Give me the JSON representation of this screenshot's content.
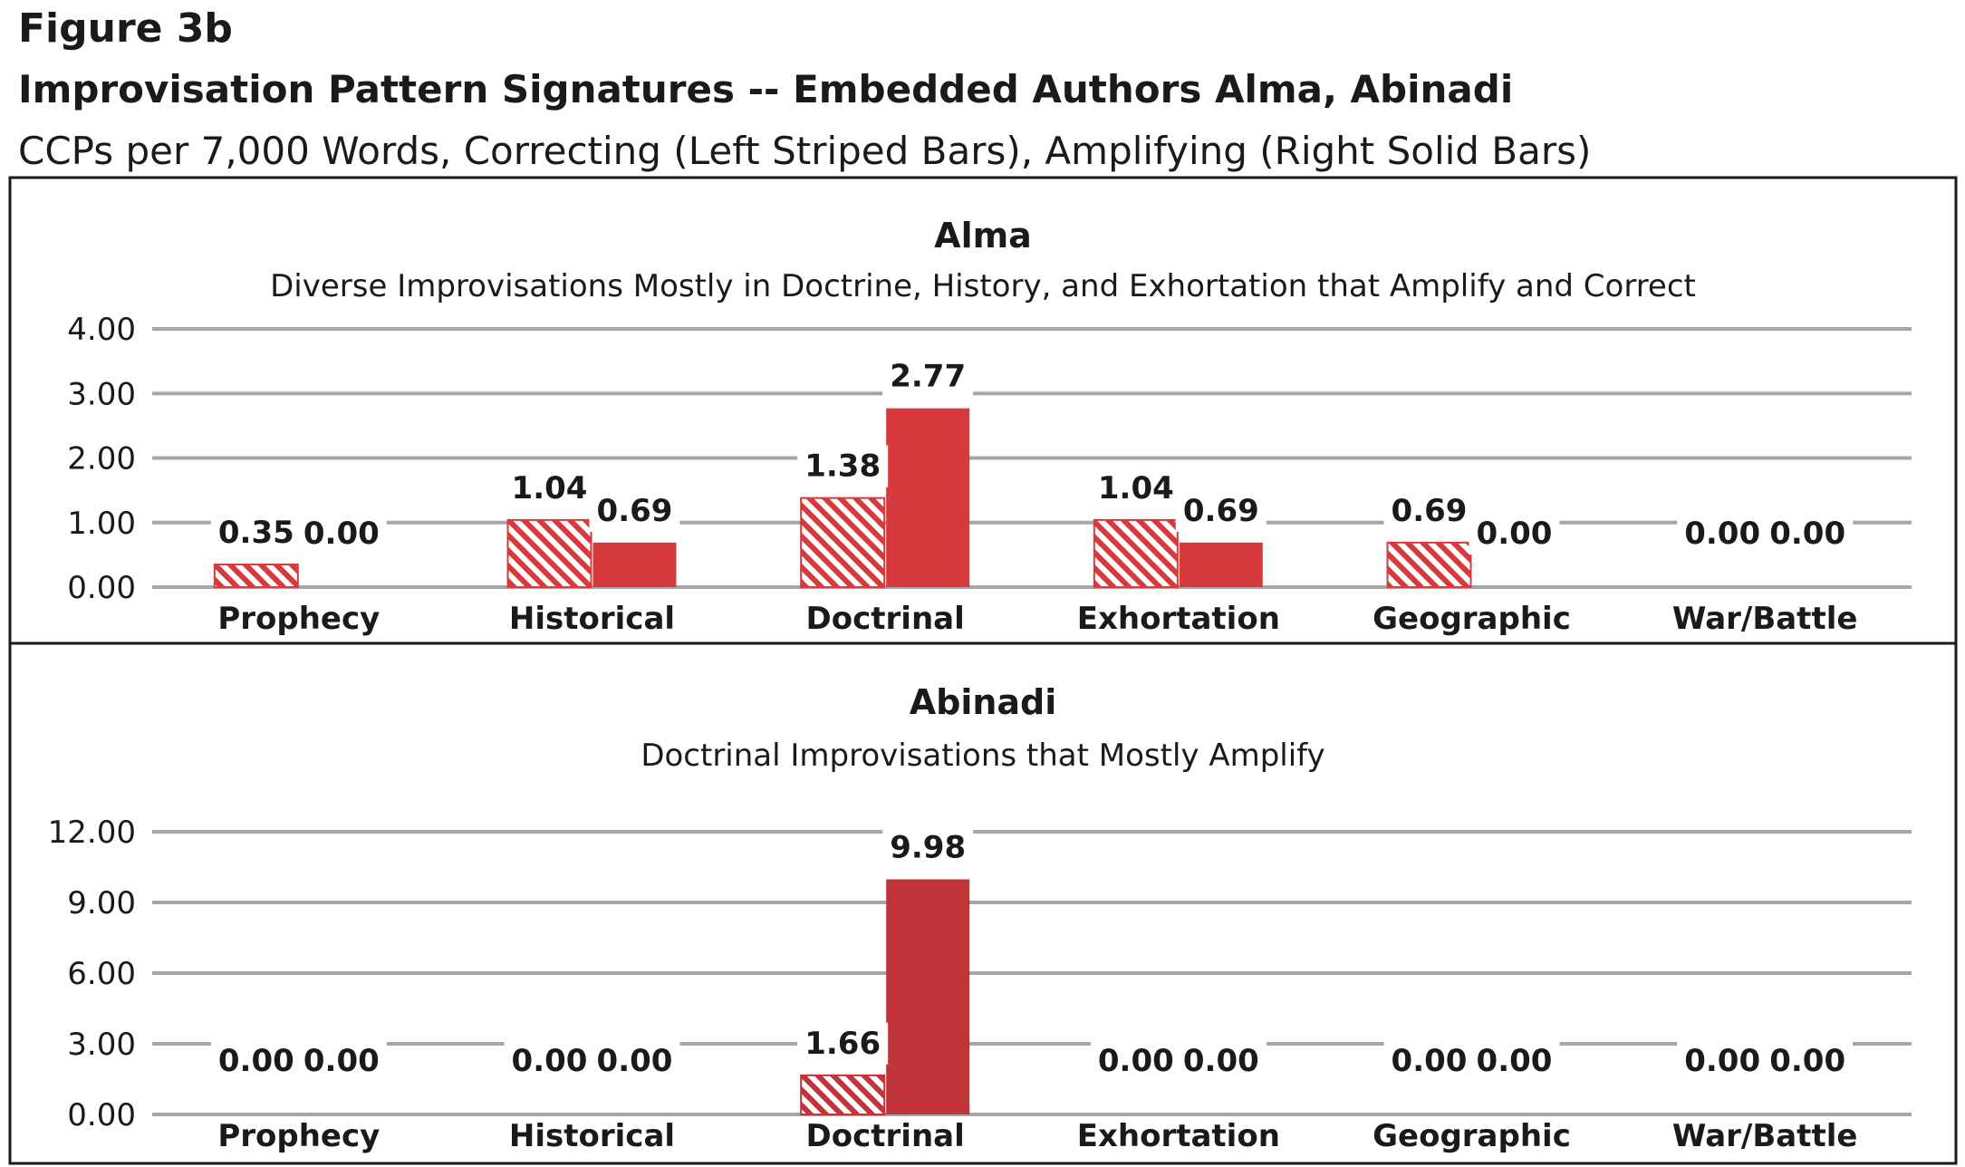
{
  "figure_label": "Figure 3b",
  "title": "Improvisation Pattern Signatures -- Embedded Authors Alma, Abinadi",
  "subtitle": "CCPs per 7,000 Words, Correcting (Left Striped Bars), Amplifying (Right Solid Bars)",
  "colors": {
    "alma_bar": "#d63a3d",
    "abinadi_bar": "#c1353a",
    "grid": "#a6a6a6",
    "frame": "#1a1a1a"
  },
  "chart_data": [
    {
      "type": "bar",
      "title": "Alma",
      "subtitle": "Diverse Improvisations Mostly in Doctrine, History, and Exhortation that Amplify and Correct",
      "categories": [
        "Prophecy",
        "Historical",
        "Doctrinal",
        "Exhortation",
        "Geographic",
        "War/Battle"
      ],
      "series": [
        {
          "name": "Correcting",
          "style": "striped",
          "values": [
            0.35,
            1.04,
            1.38,
            1.04,
            0.69,
            0.0
          ]
        },
        {
          "name": "Amplifying",
          "style": "solid",
          "values": [
            0.0,
            0.69,
            2.77,
            0.69,
            0.0,
            0.0
          ]
        }
      ],
      "ylim": [
        0,
        4
      ],
      "yticks": [
        "0.00",
        "1.00",
        "2.00",
        "3.00",
        "4.00"
      ],
      "grid": true
    },
    {
      "type": "bar",
      "title": "Abinadi",
      "subtitle": "Doctrinal Improvisations that Mostly Amplify",
      "categories": [
        "Prophecy",
        "Historical",
        "Doctrinal",
        "Exhortation",
        "Geographic",
        "War/Battle"
      ],
      "series": [
        {
          "name": "Correcting",
          "style": "striped",
          "values": [
            0.0,
            0.0,
            1.66,
            0.0,
            0.0,
            0.0
          ]
        },
        {
          "name": "Amplifying",
          "style": "solid",
          "values": [
            0.0,
            0.0,
            9.98,
            0.0,
            0.0,
            0.0
          ]
        }
      ],
      "ylim": [
        0,
        12
      ],
      "yticks": [
        "0.00",
        "3.00",
        "6.00",
        "9.00",
        "12.00"
      ],
      "grid": true
    }
  ]
}
